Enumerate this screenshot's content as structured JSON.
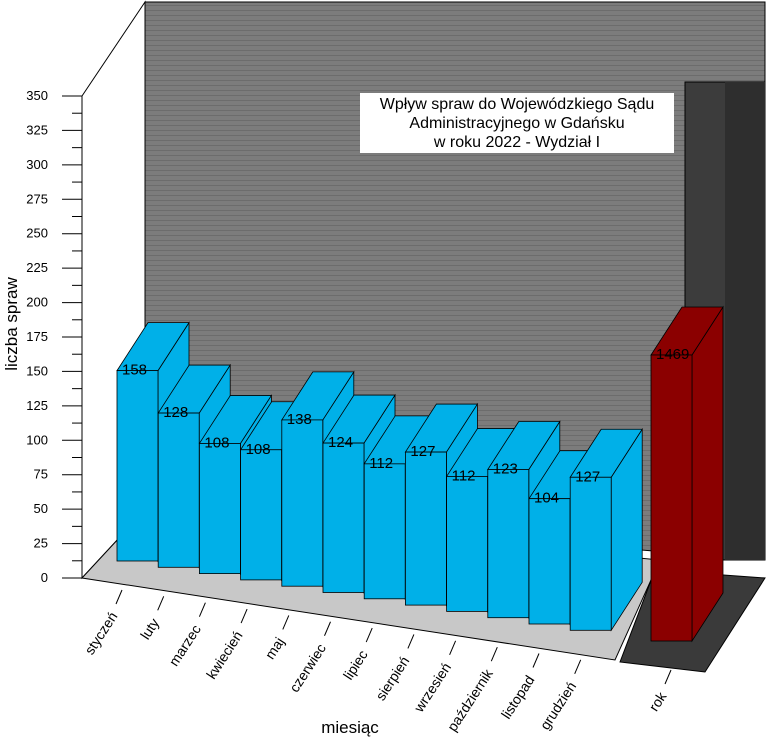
{
  "chart_data": {
    "type": "bar",
    "title": [
      "Wpływ spraw do Wojewódzkiego Sądu",
      "Administracyjnego w Gdańsku",
      "w roku 2022 - Wydział I"
    ],
    "xlabel": "miesiąc",
    "ylabel": "liczba spraw",
    "ylim": [
      0,
      350
    ],
    "yticks": [
      0,
      25,
      50,
      75,
      100,
      125,
      150,
      175,
      200,
      225,
      250,
      275,
      300,
      325,
      350
    ],
    "categories": [
      "styczeń",
      "luty",
      "marzec",
      "kwiecień",
      "maj",
      "czerwiec",
      "lipiec",
      "sierpień",
      "wrzesień",
      "październik",
      "listopad",
      "grudzień"
    ],
    "values": [
      158,
      128,
      108,
      108,
      138,
      124,
      112,
      127,
      112,
      123,
      104,
      127
    ],
    "total": {
      "category": "rok",
      "value": 1469
    },
    "colors": {
      "bar": "#00b0e8",
      "total_bar": "#8b0000",
      "back_wall": "#7a7a7a",
      "side_wall": "#4a4a4a",
      "floor": "#c8c8c8"
    },
    "grid": true
  }
}
